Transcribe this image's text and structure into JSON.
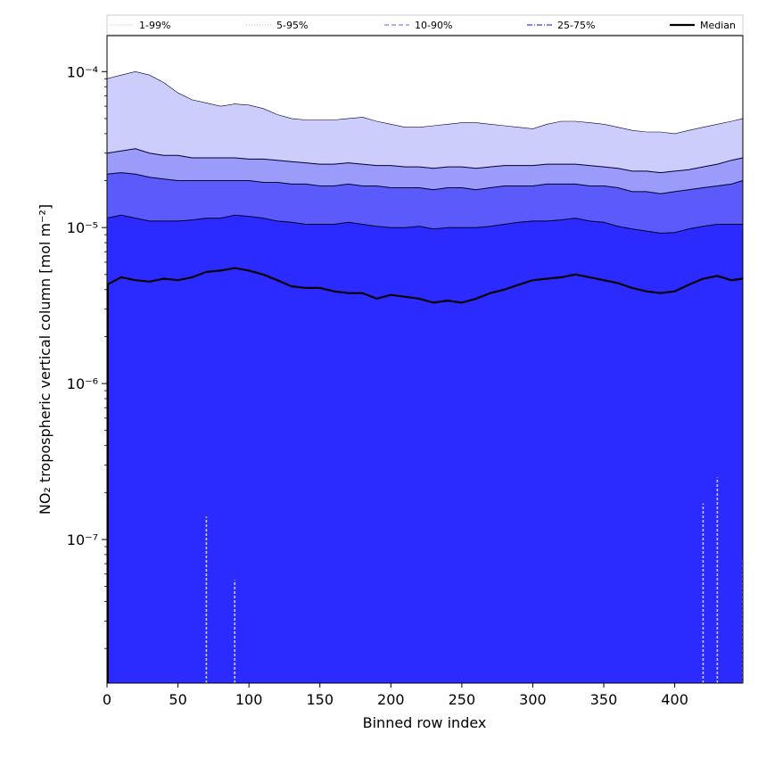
{
  "chart_data": {
    "type": "area",
    "xlabel": "Binned row index",
    "ylabel": "NO₂ tropospheric vertical column [mol m⁻²]",
    "xlim": [
      0,
      448
    ],
    "ylim": [
      1.2e-08,
      0.00017
    ],
    "yscale": "log",
    "x_ticks": [
      0,
      50,
      100,
      150,
      200,
      250,
      300,
      350,
      400
    ],
    "y_ticks": [
      {
        "value": 1e-07,
        "label": "10⁻⁷"
      },
      {
        "value": 1e-06,
        "label": "10⁻⁶"
      },
      {
        "value": 1e-05,
        "label": "10⁻⁵"
      },
      {
        "value": 0.0001,
        "label": "10⁻⁴"
      }
    ],
    "grid": false,
    "legend": {
      "placement": "top",
      "entries": [
        {
          "label": "1-99%",
          "color": "#c8c8f0",
          "dash": "solid",
          "width": 0.6
        },
        {
          "label": "5-95%",
          "color": "#9a9ae8",
          "dash": "dotted",
          "width": 0.8
        },
        {
          "label": "10-90%",
          "color": "#8080f0",
          "dash": "dashed",
          "width": 1.2
        },
        {
          "label": "25-75%",
          "color": "#5a5af0",
          "dash": "dashdot",
          "width": 1.4
        },
        {
          "label": "Median",
          "color": "#000000",
          "dash": "solid",
          "width": 2.2
        }
      ]
    },
    "x": [
      0,
      10,
      20,
      30,
      40,
      50,
      60,
      70,
      80,
      90,
      100,
      110,
      120,
      130,
      140,
      150,
      160,
      170,
      180,
      190,
      200,
      210,
      220,
      230,
      240,
      250,
      260,
      270,
      280,
      290,
      300,
      310,
      320,
      330,
      340,
      350,
      360,
      370,
      380,
      390,
      400,
      410,
      420,
      430,
      440,
      448
    ],
    "series": [
      {
        "name": "1-99%",
        "band_color": "#cdcdfb",
        "upper": [
          9e-05,
          9.5e-05,
          0.0001,
          9.5e-05,
          8.5e-05,
          7.3e-05,
          6.6e-05,
          6.3e-05,
          6e-05,
          6.2e-05,
          6.1e-05,
          5.8e-05,
          5.3e-05,
          5e-05,
          4.9e-05,
          4.9e-05,
          4.9e-05,
          5e-05,
          5.1e-05,
          4.8e-05,
          4.6e-05,
          4.4e-05,
          4.4e-05,
          4.5e-05,
          4.6e-05,
          4.7e-05,
          4.7e-05,
          4.6e-05,
          4.5e-05,
          4.4e-05,
          4.3e-05,
          4.6e-05,
          4.8e-05,
          4.8e-05,
          4.7e-05,
          4.6e-05,
          4.4e-05,
          4.2e-05,
          4.1e-05,
          4.1e-05,
          4e-05,
          4.2e-05,
          4.4e-05,
          4.6e-05,
          4.8e-05,
          5e-05
        ],
        "lower": [
          1.2e-08,
          1.2e-08,
          1.2e-08,
          1.2e-08,
          1.2e-08,
          1.2e-08,
          1.2e-08,
          1.2e-08,
          1.2e-08,
          1.2e-08,
          1.2e-08,
          1.2e-08,
          1.2e-08,
          1.2e-08,
          1.2e-08,
          1.2e-08,
          1.2e-08,
          1.2e-08,
          1.2e-08,
          1.2e-08,
          1.2e-08,
          1.2e-08,
          1.2e-08,
          1.2e-08,
          1.2e-08,
          1.2e-08,
          1.2e-08,
          1.2e-08,
          1.2e-08,
          1.2e-08,
          1.2e-08,
          1.2e-08,
          1.2e-08,
          1.2e-08,
          1.2e-08,
          1.2e-08,
          1.2e-08,
          1.2e-08,
          1.2e-08,
          1.2e-08,
          1.2e-08,
          1.2e-08,
          1.2e-08,
          1.2e-08,
          1.2e-08,
          1.2e-08
        ]
      },
      {
        "name": "5-95%",
        "band_color": "#9b9bfa",
        "upper": [
          3e-05,
          3.1e-05,
          3.2e-05,
          3e-05,
          2.9e-05,
          2.9e-05,
          2.8e-05,
          2.8e-05,
          2.8e-05,
          2.8e-05,
          2.75e-05,
          2.75e-05,
          2.7e-05,
          2.65e-05,
          2.6e-05,
          2.55e-05,
          2.55e-05,
          2.6e-05,
          2.55e-05,
          2.5e-05,
          2.5e-05,
          2.45e-05,
          2.45e-05,
          2.4e-05,
          2.45e-05,
          2.45e-05,
          2.4e-05,
          2.45e-05,
          2.5e-05,
          2.5e-05,
          2.5e-05,
          2.55e-05,
          2.55e-05,
          2.55e-05,
          2.5e-05,
          2.45e-05,
          2.4e-05,
          2.3e-05,
          2.3e-05,
          2.25e-05,
          2.3e-05,
          2.35e-05,
          2.45e-05,
          2.55e-05,
          2.7e-05,
          2.8e-05
        ],
        "lower": [
          1.2e-08,
          1.2e-08,
          1.2e-08,
          1.2e-08,
          1.2e-08,
          1.2e-08,
          1.2e-08,
          1.4e-07,
          1.2e-08,
          5.5e-08,
          1.2e-08,
          1.2e-08,
          1.2e-08,
          1.2e-08,
          1.2e-08,
          1.2e-08,
          1.2e-08,
          1.2e-08,
          1.2e-08,
          1.2e-08,
          1.2e-08,
          1.2e-08,
          1.2e-08,
          1.2e-08,
          1.2e-08,
          1.2e-08,
          1.2e-08,
          1.2e-08,
          1.2e-08,
          1.2e-08,
          1.2e-08,
          1.2e-08,
          1.2e-08,
          1.2e-08,
          1.2e-08,
          1.2e-08,
          1.2e-08,
          1.2e-08,
          1.2e-08,
          1.2e-08,
          1.2e-08,
          1.2e-08,
          1.7e-07,
          2.5e-07,
          1.2e-08,
          7.5e-08
        ]
      },
      {
        "name": "10-90%",
        "band_color": "#5b5bfb",
        "upper": [
          2.2e-05,
          2.25e-05,
          2.2e-05,
          2.1e-05,
          2.05e-05,
          2e-05,
          2e-05,
          2e-05,
          2e-05,
          2e-05,
          2e-05,
          1.95e-05,
          1.95e-05,
          1.9e-05,
          1.9e-05,
          1.85e-05,
          1.85e-05,
          1.9e-05,
          1.85e-05,
          1.85e-05,
          1.8e-05,
          1.8e-05,
          1.8e-05,
          1.75e-05,
          1.8e-05,
          1.8e-05,
          1.75e-05,
          1.8e-05,
          1.85e-05,
          1.85e-05,
          1.85e-05,
          1.9e-05,
          1.9e-05,
          1.9e-05,
          1.85e-05,
          1.85e-05,
          1.8e-05,
          1.7e-05,
          1.7e-05,
          1.65e-05,
          1.7e-05,
          1.75e-05,
          1.8e-05,
          1.85e-05,
          1.9e-05,
          2e-05
        ],
        "lower": [
          1.2e-08,
          1.2e-08,
          1.2e-08,
          1.2e-08,
          1.2e-08,
          1.2e-08,
          1.2e-08,
          1.2e-08,
          1.2e-08,
          1.6e-08,
          1.2e-08,
          1.2e-08,
          1.2e-08,
          1.2e-08,
          1.2e-08,
          1.2e-08,
          1.2e-08,
          1.2e-08,
          1.2e-08,
          1.2e-08,
          1.2e-08,
          1.2e-08,
          1.2e-08,
          1.2e-08,
          1.2e-08,
          1.2e-08,
          1.2e-08,
          1.2e-08,
          1.2e-08,
          1.2e-08,
          1.2e-08,
          1.2e-08,
          1.2e-08,
          1.2e-08,
          1.2e-08,
          1.2e-08,
          1.2e-08,
          1.2e-08,
          1.2e-08,
          1.2e-08,
          1.2e-08,
          1.2e-08,
          1.2e-08,
          1.2e-08,
          1.2e-08,
          1.2e-08
        ]
      },
      {
        "name": "25-75%",
        "band_color": "#2b2bff",
        "upper": [
          1.15e-05,
          1.2e-05,
          1.15e-05,
          1.1e-05,
          1.1e-05,
          1.1e-05,
          1.12e-05,
          1.15e-05,
          1.15e-05,
          1.2e-05,
          1.18e-05,
          1.15e-05,
          1.1e-05,
          1.08e-05,
          1.05e-05,
          1.05e-05,
          1.05e-05,
          1.08e-05,
          1.05e-05,
          1.02e-05,
          1e-05,
          1e-05,
          1.02e-05,
          9.8e-06,
          1e-05,
          1e-05,
          1e-05,
          1.02e-05,
          1.05e-05,
          1.08e-05,
          1.1e-05,
          1.1e-05,
          1.12e-05,
          1.15e-05,
          1.1e-05,
          1.08e-05,
          1.02e-05,
          9.8e-06,
          9.5e-06,
          9.2e-06,
          9.3e-06,
          9.8e-06,
          1.02e-05,
          1.05e-05,
          1.05e-05,
          1.05e-05
        ],
        "lower": [
          1.2e-08,
          1.2e-08,
          1.2e-08,
          1.2e-08,
          1.2e-08,
          1.2e-08,
          1.2e-08,
          1.2e-08,
          1.2e-08,
          1.2e-08,
          1.2e-08,
          1.2e-08,
          1.2e-08,
          1.2e-08,
          1.2e-08,
          1.2e-08,
          1.2e-08,
          1.2e-08,
          1.2e-08,
          1.2e-08,
          1.2e-08,
          1.2e-08,
          1.2e-08,
          1.2e-08,
          1.2e-08,
          1.2e-08,
          1.2e-08,
          1.2e-08,
          1.2e-08,
          1.2e-08,
          1.2e-08,
          1.2e-08,
          1.2e-08,
          1.2e-08,
          1.2e-08,
          1.2e-08,
          1.2e-08,
          1.2e-08,
          1.2e-08,
          1.2e-08,
          1.2e-08,
          1.2e-08,
          1.2e-08,
          1.2e-08,
          1.2e-08,
          1.2e-08
        ]
      },
      {
        "name": "Median",
        "line_color": "#000000",
        "values": [
          4.3e-06,
          4.8e-06,
          4.6e-06,
          4.5e-06,
          4.7e-06,
          4.6e-06,
          4.8e-06,
          5.2e-06,
          5.3e-06,
          5.5e-06,
          5.3e-06,
          5e-06,
          4.6e-06,
          4.2e-06,
          4.1e-06,
          4.1e-06,
          3.9e-06,
          3.8e-06,
          3.8e-06,
          3.5e-06,
          3.7e-06,
          3.6e-06,
          3.5e-06,
          3.3e-06,
          3.4e-06,
          3.3e-06,
          3.5e-06,
          3.8e-06,
          4e-06,
          4.3e-06,
          4.6e-06,
          4.7e-06,
          4.8e-06,
          5e-06,
          4.8e-06,
          4.6e-06,
          4.4e-06,
          4.1e-06,
          3.9e-06,
          3.8e-06,
          3.9e-06,
          4.3e-06,
          4.7e-06,
          4.9e-06,
          4.6e-06,
          4.7e-06
        ]
      }
    ]
  }
}
